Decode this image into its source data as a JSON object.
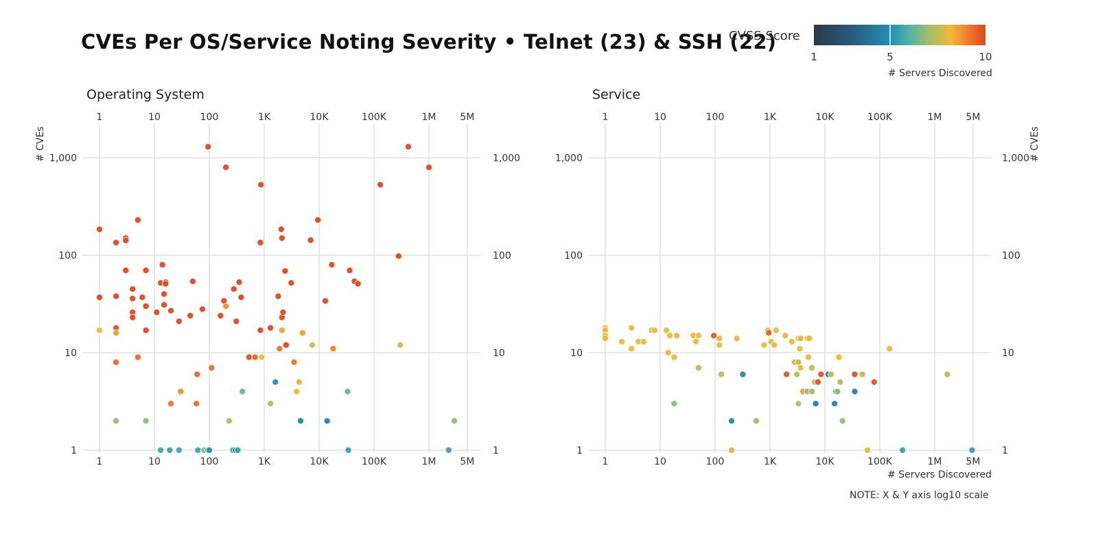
{
  "title": "CVEs Per OS/Service Noting Severity • Telnet (23) & SSH (22)",
  "legend": {
    "label": "CVSS Score",
    "ticks": [
      "1",
      "5",
      "10"
    ],
    "min": 1,
    "max": 10,
    "colors": [
      "#2b3a48",
      "#2a5677",
      "#2590b5",
      "#4fb3a6",
      "#9dbd6f",
      "#f2b935",
      "#ee7a2b",
      "#e2471d"
    ],
    "sub_label": "# Servers Discovered"
  },
  "note": "NOTE: X & Y axis log10 scale",
  "chart_data": [
    {
      "type": "scatter",
      "title": "Operating System",
      "xlabel": "# Servers Discovered",
      "ylabel": "# CVEs",
      "xscale": "log10",
      "yscale": "log10",
      "xlim": [
        1,
        5000000
      ],
      "ylim": [
        1,
        2000
      ],
      "x_ticks": [
        1,
        10,
        100,
        1000,
        10000,
        100000,
        1000000,
        5000000
      ],
      "x_tick_labels": [
        "1",
        "10",
        "100",
        "1K",
        "10K",
        "100K",
        "1M",
        "5M"
      ],
      "y_ticks": [
        1,
        10,
        100,
        1000
      ],
      "y_tick_labels": [
        "1",
        "10",
        "100",
        "1,000"
      ],
      "grid": true,
      "color_by": "cvss",
      "points": [
        [
          95,
          1300,
          10
        ],
        [
          200,
          800,
          10
        ],
        [
          870,
          530,
          10
        ],
        [
          130000,
          530,
          10
        ],
        [
          420000,
          1300,
          10
        ],
        [
          1000000,
          800,
          10
        ],
        [
          5,
          230,
          10
        ],
        [
          1,
          185,
          10
        ],
        [
          2,
          135,
          10
        ],
        [
          3,
          150,
          10
        ],
        [
          3,
          142,
          10
        ],
        [
          850,
          135,
          10
        ],
        [
          2050,
          185,
          10
        ],
        [
          2100,
          150,
          10
        ],
        [
          9500,
          230,
          10
        ],
        [
          7000,
          143,
          10
        ],
        [
          1,
          37,
          10
        ],
        [
          2,
          38,
          10
        ],
        [
          3,
          70,
          10
        ],
        [
          4,
          45,
          10
        ],
        [
          4,
          36,
          10
        ],
        [
          4,
          26,
          10
        ],
        [
          4,
          23,
          10
        ],
        [
          6,
          37,
          10
        ],
        [
          7,
          70,
          10
        ],
        [
          7,
          30,
          10
        ],
        [
          7,
          17,
          10
        ],
        [
          11,
          26,
          10
        ],
        [
          13,
          52,
          10
        ],
        [
          14,
          80,
          10
        ],
        [
          15,
          40,
          10
        ],
        [
          15,
          31,
          10
        ],
        [
          16,
          53,
          10
        ],
        [
          16,
          51,
          10
        ],
        [
          20,
          27,
          10
        ],
        [
          28,
          21,
          10
        ],
        [
          45,
          24,
          10
        ],
        [
          50,
          54,
          10
        ],
        [
          75,
          28,
          10
        ],
        [
          160,
          24,
          10
        ],
        [
          185,
          34,
          10
        ],
        [
          280,
          45,
          10
        ],
        [
          310,
          21,
          10
        ],
        [
          350,
          53,
          10
        ],
        [
          380,
          37,
          10
        ],
        [
          850,
          17,
          10
        ],
        [
          1300,
          18,
          10
        ],
        [
          1800,
          38,
          10
        ],
        [
          2100,
          23,
          10
        ],
        [
          2200,
          26,
          10
        ],
        [
          2400,
          69,
          10
        ],
        [
          3100,
          52,
          10
        ],
        [
          13000,
          34,
          10
        ],
        [
          17000,
          80,
          10
        ],
        [
          36000,
          70,
          10
        ],
        [
          44000,
          54,
          10
        ],
        [
          51000,
          51,
          10
        ],
        [
          280000,
          98,
          10
        ],
        [
          2500,
          12,
          10
        ],
        [
          1,
          17,
          8.2
        ],
        [
          2,
          18,
          9.8
        ],
        [
          2,
          16,
          8.6
        ],
        [
          2,
          8,
          9.4
        ],
        [
          5,
          9,
          9.3
        ],
        [
          200,
          30,
          8.8
        ],
        [
          2100,
          17,
          8.5
        ],
        [
          1900,
          11,
          9.2
        ],
        [
          5000,
          16,
          8.6
        ],
        [
          7500,
          12,
          7.6
        ],
        [
          18000,
          11,
          9.0
        ],
        [
          300000,
          12,
          7.6
        ],
        [
          530,
          9,
          9.8
        ],
        [
          680,
          9,
          9.5
        ],
        [
          900,
          9,
          8.0
        ],
        [
          3500,
          8,
          9.2
        ],
        [
          60,
          6,
          9.4
        ],
        [
          110,
          7,
          9.3
        ],
        [
          30,
          4,
          8.8
        ],
        [
          20,
          3,
          9.3
        ],
        [
          58,
          3,
          9.3
        ],
        [
          3900,
          4,
          8.2
        ],
        [
          4300,
          5,
          8.3
        ],
        [
          1600,
          5,
          5.0
        ],
        [
          400,
          4,
          6.3
        ],
        [
          33000,
          4,
          6.3
        ],
        [
          1300,
          3,
          7.2
        ],
        [
          2,
          2,
          7.0
        ],
        [
          7,
          2,
          6.7
        ],
        [
          230,
          2,
          7.2
        ],
        [
          2900000,
          2,
          6.8
        ],
        [
          4600,
          2,
          4.5
        ],
        [
          14000,
          2,
          4.5
        ],
        [
          13,
          1,
          5.6
        ],
        [
          19,
          1,
          5.5
        ],
        [
          28,
          1,
          5.6
        ],
        [
          62,
          1,
          5.6
        ],
        [
          80,
          1,
          6.8
        ],
        [
          95,
          1,
          5.3
        ],
        [
          100,
          1,
          5.2
        ],
        [
          270,
          1,
          5.5
        ],
        [
          300,
          1,
          5.2
        ],
        [
          330,
          1,
          5.5
        ],
        [
          34000,
          1,
          5.5
        ],
        [
          2300000,
          1,
          5.5
        ]
      ]
    },
    {
      "type": "scatter",
      "title": "Service",
      "xlabel": "# Servers Discovered",
      "ylabel": "# CVEs",
      "xscale": "log10",
      "yscale": "log10",
      "xlim": [
        1,
        5000000
      ],
      "ylim": [
        1,
        2000
      ],
      "x_ticks": [
        1,
        10,
        100,
        1000,
        10000,
        100000,
        1000000,
        5000000
      ],
      "x_tick_labels": [
        "1",
        "10",
        "100",
        "1K",
        "10K",
        "100K",
        "1M",
        "5M"
      ],
      "y_ticks": [
        1,
        10,
        100,
        1000
      ],
      "y_tick_labels": [
        "1",
        "10",
        "100",
        "1,000"
      ],
      "grid": true,
      "color_by": "cvss",
      "points": [
        [
          1,
          18,
          8.0
        ],
        [
          1,
          17,
          8.0
        ],
        [
          1,
          15,
          8.0
        ],
        [
          1,
          14,
          8.0
        ],
        [
          2,
          13,
          8.0
        ],
        [
          3,
          18,
          8.0
        ],
        [
          3,
          11,
          8.0
        ],
        [
          4,
          13,
          8.0
        ],
        [
          5,
          13,
          8.0
        ],
        [
          7,
          17,
          8.0
        ],
        [
          8,
          17,
          8.0
        ],
        [
          13,
          17,
          8.0
        ],
        [
          14,
          10,
          8.0
        ],
        [
          15,
          15,
          8.0
        ],
        [
          18,
          9,
          8.0
        ],
        [
          20,
          15,
          8.0
        ],
        [
          40,
          15,
          8.0
        ],
        [
          45,
          13,
          8.0
        ],
        [
          50,
          15,
          8.0
        ],
        [
          50,
          7,
          7.5
        ],
        [
          95,
          15,
          9.6
        ],
        [
          120,
          14,
          8.0
        ],
        [
          120,
          12,
          8.0
        ],
        [
          130,
          6,
          7.5
        ],
        [
          250,
          14,
          8.0
        ],
        [
          320,
          6,
          4.8
        ],
        [
          18,
          3,
          6.8
        ],
        [
          200,
          2,
          4.8
        ],
        [
          560,
          2,
          7.0
        ],
        [
          200,
          1,
          7.8
        ],
        [
          780,
          12,
          8.0
        ],
        [
          920,
          17,
          8.0
        ],
        [
          950,
          16,
          9.6
        ],
        [
          1050,
          13,
          8.0
        ],
        [
          1200,
          12,
          8.0
        ],
        [
          1300,
          17,
          8.0
        ],
        [
          1900,
          15,
          8.0
        ],
        [
          2500,
          13,
          8.0
        ],
        [
          3300,
          14,
          8.0
        ],
        [
          3600,
          14,
          8.0
        ],
        [
          3500,
          11,
          8.0
        ],
        [
          4800,
          14,
          8.0
        ],
        [
          5200,
          14,
          8.0
        ],
        [
          2800,
          8,
          7.6
        ],
        [
          3300,
          8,
          7.6
        ],
        [
          3600,
          7,
          8.0
        ],
        [
          5000,
          9,
          8.0
        ],
        [
          18000,
          9,
          8.0
        ],
        [
          2000,
          6,
          9.8
        ],
        [
          3100,
          6,
          7.4
        ],
        [
          5800,
          7,
          7.4
        ],
        [
          6500,
          5,
          7.4
        ],
        [
          7500,
          5,
          9.8
        ],
        [
          8500,
          6,
          9.8
        ],
        [
          11500,
          6,
          4.6
        ],
        [
          13000,
          6,
          7.4
        ],
        [
          35000,
          6,
          9.8
        ],
        [
          48000,
          6,
          7.4
        ],
        [
          79000,
          5,
          9.8
        ],
        [
          4000,
          4,
          8.6
        ],
        [
          4800,
          4,
          6.8
        ],
        [
          5800,
          4,
          7.0
        ],
        [
          16000,
          4,
          5.5
        ],
        [
          17000,
          4,
          6.8
        ],
        [
          35000,
          4,
          4.6
        ],
        [
          19000,
          5,
          7.4
        ],
        [
          3300,
          3,
          7.4
        ],
        [
          6800,
          3,
          4.6
        ],
        [
          15000,
          3,
          4.6
        ],
        [
          21000,
          2,
          6.8
        ],
        [
          150000,
          11,
          8.0
        ],
        [
          1700000,
          6,
          7.4
        ],
        [
          60000,
          1,
          7.8
        ],
        [
          260000,
          1,
          5.5
        ],
        [
          4800000,
          1,
          5.5
        ]
      ]
    }
  ]
}
